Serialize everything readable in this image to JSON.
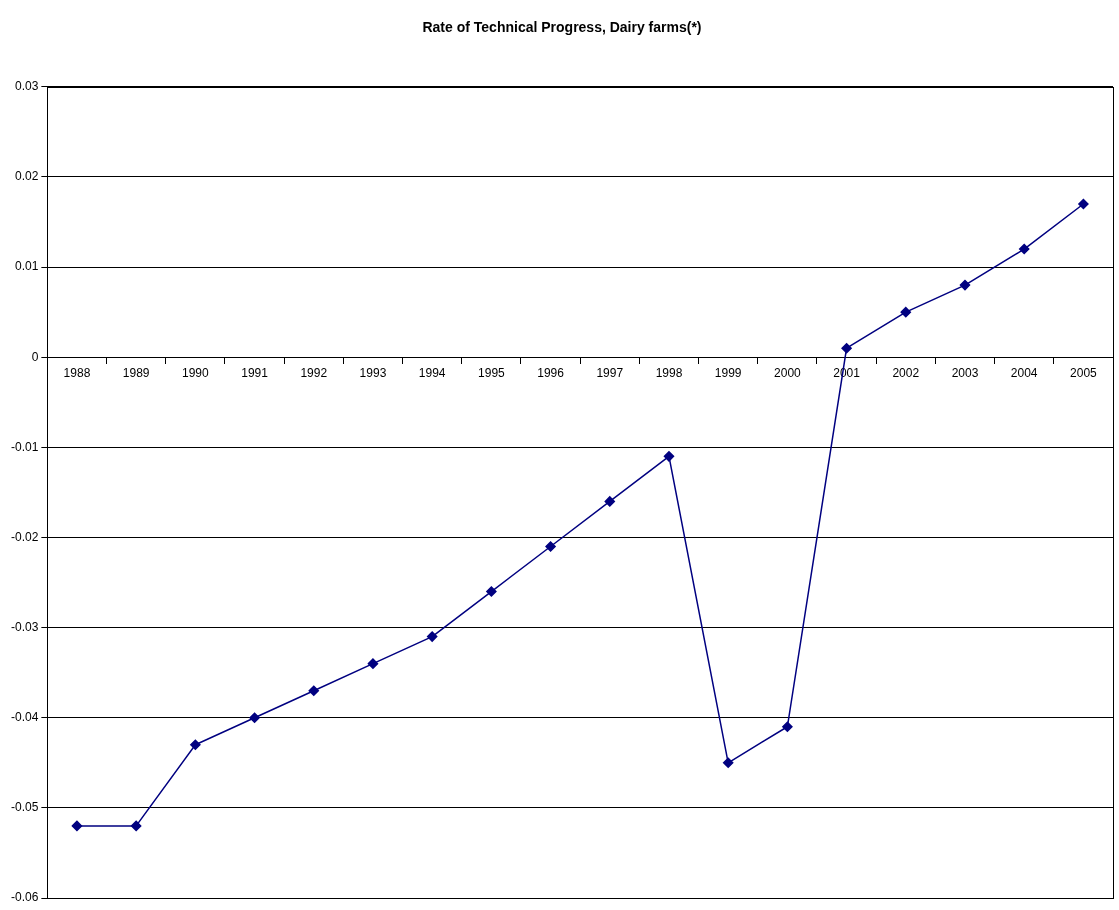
{
  "chart_data": {
    "type": "line",
    "title": "Rate of Technical Progress, Dairy farms(*)",
    "categories": [
      "1988",
      "1989",
      "1990",
      "1991",
      "1992",
      "1993",
      "1994",
      "1995",
      "1996",
      "1997",
      "1998",
      "1999",
      "2000",
      "2001",
      "2002",
      "2003",
      "2004",
      "2005"
    ],
    "series": [
      {
        "color": "#000080",
        "values": [
          -0.052,
          -0.052,
          -0.043,
          -0.04,
          -0.037,
          -0.034,
          -0.031,
          -0.026,
          -0.021,
          -0.016,
          -0.011,
          -0.045,
          -0.041,
          0.001,
          0.005,
          0.008,
          0.012,
          0.017
        ]
      }
    ],
    "ylim": [
      -0.06,
      0.03
    ],
    "yticks": [
      -0.06,
      -0.05,
      -0.04,
      -0.03,
      -0.02,
      -0.01,
      0,
      0.01,
      0.02,
      0.03
    ],
    "grid": "y",
    "legend": false,
    "marker": "diamond",
    "line_style": "solid"
  }
}
